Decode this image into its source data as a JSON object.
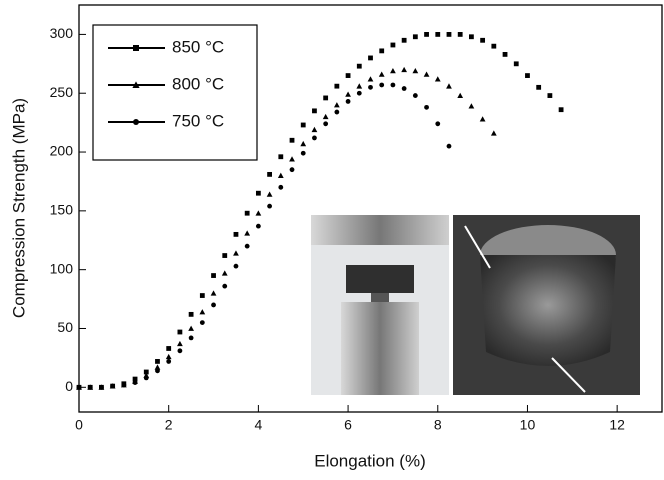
{
  "chart_data": {
    "type": "scatter",
    "x_label": "Elongation (%)",
    "y_label": "Compression Strength (MPa)",
    "xlim": [
      0,
      13
    ],
    "ylim": [
      -21,
      325
    ],
    "xticks": [
      0,
      2,
      4,
      6,
      8,
      10,
      12
    ],
    "yticks": [
      0,
      50,
      100,
      150,
      200,
      250,
      300
    ],
    "legend": "upper left",
    "series": [
      {
        "name": "850 °C",
        "marker": "square",
        "color": "#000000",
        "x": [
          0,
          0.25,
          0.5,
          0.75,
          1,
          1.25,
          1.5,
          1.75,
          2,
          2.25,
          2.5,
          2.75,
          3,
          3.25,
          3.5,
          3.75,
          4,
          4.25,
          4.5,
          4.75,
          5,
          5.25,
          5.5,
          5.75,
          6,
          6.25,
          6.5,
          6.75,
          7,
          7.25,
          7.5,
          7.75,
          8,
          8.25,
          8.5,
          8.75,
          9,
          9.25,
          9.5,
          9.75,
          10,
          10.25,
          10.5,
          10.75
        ],
        "values": [
          0,
          0,
          0,
          1,
          3,
          7,
          13,
          22,
          33,
          47,
          62,
          78,
          95,
          112,
          130,
          148,
          165,
          181,
          196,
          210,
          223,
          235,
          246,
          256,
          265,
          273,
          280,
          286,
          291,
          295,
          298,
          300,
          300,
          300,
          300,
          298,
          295,
          290,
          283,
          275,
          265,
          255,
          248,
          236
        ]
      },
      {
        "name": "800 °C",
        "marker": "triangle",
        "color": "#000000",
        "x": [
          0,
          0.25,
          0.5,
          0.75,
          1,
          1.25,
          1.5,
          1.75,
          2,
          2.25,
          2.5,
          2.75,
          3,
          3.25,
          3.5,
          3.75,
          4,
          4.25,
          4.5,
          4.75,
          5,
          5.25,
          5.5,
          5.75,
          6,
          6.25,
          6.5,
          6.75,
          7,
          7.25,
          7.5,
          7.75,
          8,
          8.25,
          8.5,
          8.75,
          9,
          9.25
        ],
        "values": [
          0,
          0,
          0,
          1,
          2,
          5,
          10,
          17,
          26,
          37,
          50,
          64,
          80,
          97,
          114,
          131,
          148,
          164,
          180,
          194,
          207,
          219,
          230,
          240,
          249,
          256,
          262,
          266,
          269,
          270,
          269,
          266,
          262,
          256,
          248,
          239,
          228,
          216
        ]
      },
      {
        "name": "750 °C",
        "marker": "circle",
        "color": "#000000",
        "x": [
          0,
          0.25,
          0.5,
          0.75,
          1,
          1.25,
          1.5,
          1.75,
          2,
          2.25,
          2.5,
          2.75,
          3,
          3.25,
          3.5,
          3.75,
          4,
          4.25,
          4.5,
          4.75,
          5,
          5.25,
          5.5,
          5.75,
          6,
          6.25,
          6.5,
          6.75,
          7,
          7.25,
          7.5,
          7.75,
          8,
          8.25
        ],
        "values": [
          0,
          0,
          0,
          1,
          2,
          4,
          8,
          14,
          22,
          31,
          42,
          55,
          70,
          86,
          103,
          120,
          137,
          154,
          170,
          185,
          199,
          212,
          224,
          234,
          243,
          250,
          255,
          257,
          257,
          254,
          248,
          238,
          224,
          205
        ]
      }
    ]
  }
}
